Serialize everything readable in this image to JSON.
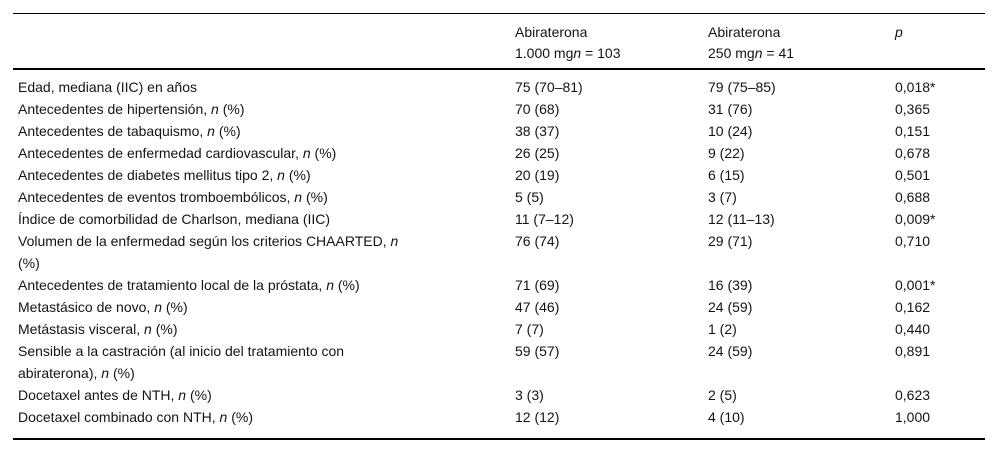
{
  "colors": {
    "background": "#ffffff",
    "text": "#141414",
    "rule": "#000000"
  },
  "table": {
    "header": {
      "col1_parts": [],
      "col2_parts": [
        {
          "t": "Abiraterona"
        },
        {
          "br": true
        },
        {
          "t": "1.000 mg"
        },
        {
          "t": "n",
          "it": true
        },
        {
          "t": " = 103"
        }
      ],
      "col3_parts": [
        {
          "t": "Abiraterona"
        },
        {
          "br": true
        },
        {
          "t": "250 mg"
        },
        {
          "t": "n",
          "it": true
        },
        {
          "t": " = 41"
        }
      ],
      "col4_parts": [
        {
          "t": "p",
          "it": true
        }
      ]
    },
    "rows": [
      {
        "label_parts": [
          {
            "t": "Edad, mediana (IIC) en años"
          }
        ],
        "v1": "75 (70–81)",
        "v2": "79 (75–85)",
        "p": "0,018*"
      },
      {
        "label_parts": [
          {
            "t": "Antecedentes de hipertensión, "
          },
          {
            "t": "n",
            "it": true
          },
          {
            "t": " (%)"
          }
        ],
        "v1": "70 (68)",
        "v2": "31 (76)",
        "p": "0,365"
      },
      {
        "label_parts": [
          {
            "t": "Antecedentes de tabaquismo, "
          },
          {
            "t": "n",
            "it": true
          },
          {
            "t": " (%)"
          }
        ],
        "v1": "38 (37)",
        "v2": "10 (24)",
        "p": "0,151"
      },
      {
        "label_parts": [
          {
            "t": "Antecedentes de enfermedad cardiovascular, "
          },
          {
            "t": "n",
            "it": true
          },
          {
            "t": " (%)"
          }
        ],
        "v1": "26 (25)",
        "v2": "9 (22)",
        "p": "0,678"
      },
      {
        "label_parts": [
          {
            "t": "Antecedentes de diabetes mellitus tipo 2, "
          },
          {
            "t": "n",
            "it": true
          },
          {
            "t": " (%)"
          }
        ],
        "v1": "20 (19)",
        "v2": "6 (15)",
        "p": "0,501"
      },
      {
        "label_parts": [
          {
            "t": "Antecedentes de eventos tromboembólicos, "
          },
          {
            "t": "n",
            "it": true
          },
          {
            "t": " (%)"
          }
        ],
        "v1": "5 (5)",
        "v2": "3 (7)",
        "p": "0,688"
      },
      {
        "label_parts": [
          {
            "t": "Índice de comorbilidad de Charlson, mediana (IIC)"
          }
        ],
        "v1": "11 (7–12)",
        "v2": "12 (11–13)",
        "p": "0,009*"
      },
      {
        "label_parts": [
          {
            "t": "Volumen de la enfermedad según los criterios CHAARTED, "
          },
          {
            "t": "n",
            "it": true
          },
          {
            "br": true
          },
          {
            "t": "(%)"
          }
        ],
        "v1": "76 (74)",
        "v2": "29 (71)",
        "p": "0,710"
      },
      {
        "label_parts": [
          {
            "t": "Antecedentes de tratamiento local de la próstata, "
          },
          {
            "t": "n",
            "it": true
          },
          {
            "t": " (%)"
          }
        ],
        "v1": "71 (69)",
        "v2": "16 (39)",
        "p": "0,001*"
      },
      {
        "label_parts": [
          {
            "t": "Metastásico de novo, "
          },
          {
            "t": "n",
            "it": true
          },
          {
            "t": " (%)"
          }
        ],
        "v1": "47 (46)",
        "v2": "24 (59)",
        "p": "0,162"
      },
      {
        "label_parts": [
          {
            "t": "Metástasis visceral, "
          },
          {
            "t": "n",
            "it": true
          },
          {
            "t": " (%)"
          }
        ],
        "v1": "7 (7)",
        "v2": "1 (2)",
        "p": "0,440"
      },
      {
        "label_parts": [
          {
            "t": "Sensible a la castración (al inicio del tratamiento con"
          },
          {
            "br": true
          },
          {
            "t": "abiraterona), "
          },
          {
            "t": "n",
            "it": true
          },
          {
            "t": " (%)"
          }
        ],
        "v1": "59 (57)",
        "v2": "24 (59)",
        "p": "0,891"
      },
      {
        "label_parts": [
          {
            "t": "Docetaxel antes de NTH, "
          },
          {
            "t": "n",
            "it": true
          },
          {
            "t": " (%)"
          }
        ],
        "v1": "3 (3)",
        "v2": "2 (5)",
        "p": "0,623"
      },
      {
        "label_parts": [
          {
            "t": "Docetaxel combinado con NTH, "
          },
          {
            "t": "n",
            "it": true
          },
          {
            "t": " (%)"
          }
        ],
        "v1": "12 (12)",
        "v2": "4 (10)",
        "p": "1,000"
      }
    ]
  }
}
